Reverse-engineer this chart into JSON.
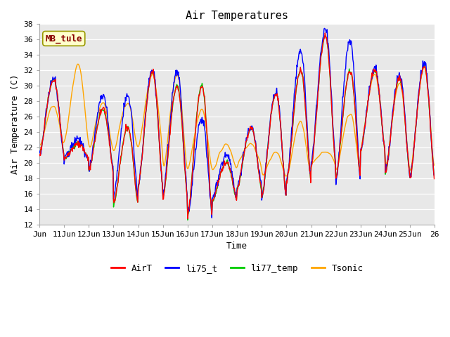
{
  "title": "Air Temperatures",
  "xlabel": "Time",
  "ylabel": "Air Temperature (C)",
  "ylim": [
    12,
    38
  ],
  "yticks": [
    12,
    14,
    16,
    18,
    20,
    22,
    24,
    26,
    28,
    30,
    32,
    34,
    36,
    38
  ],
  "bg_color": "#e8e8e8",
  "annotation_text": "MB_tule",
  "annotation_bg": "#ffffcc",
  "annotation_border": "#999900",
  "annotation_fg": "#880000",
  "legend_entries": [
    "AirT",
    "li75_t",
    "li77_temp",
    "Tsonic"
  ],
  "legend_colors": [
    "#ff0000",
    "#0000ff",
    "#00cc00",
    "#ffa500"
  ],
  "line_width": 1.0,
  "n_days": 16,
  "x_tick_labels": [
    "Jun",
    "11Jun",
    "12Jun",
    "13Jun",
    "14Jun",
    "15Jun",
    "16Jun",
    "17Jun",
    "18Jun",
    "19Jun",
    "20Jun",
    "21Jun",
    "22Jun",
    "23Jun",
    "24Jun",
    "25Jun",
    "26"
  ],
  "font_family": "monospace",
  "samples_per_day": 48,
  "daily_mins_base": [
    21.0,
    20.5,
    19.0,
    14.5,
    17.0,
    15.5,
    13.0,
    15.0,
    16.5,
    15.5,
    17.5,
    19.5,
    18.0,
    21.5,
    18.5,
    18.0
  ],
  "daily_maxs_base": [
    30.8,
    22.5,
    27.0,
    24.5,
    31.8,
    30.0,
    30.0,
    20.0,
    24.5,
    29.0,
    32.0,
    36.5,
    32.0,
    32.0,
    31.0,
    32.5
  ],
  "daily_mins_li75": [
    21.0,
    20.5,
    19.0,
    15.5,
    17.0,
    15.5,
    13.2,
    15.5,
    17.0,
    15.5,
    17.5,
    20.0,
    17.5,
    21.5,
    18.5,
    18.0
  ],
  "daily_maxs_li75": [
    31.0,
    23.0,
    28.8,
    28.8,
    32.0,
    31.8,
    25.8,
    21.0,
    24.5,
    29.2,
    34.5,
    37.5,
    35.8,
    32.2,
    31.5,
    33.0
  ],
  "daily_mins_tsonic": [
    22.0,
    22.5,
    21.5,
    21.5,
    22.0,
    18.5,
    19.0,
    19.0,
    20.0,
    18.0,
    18.0,
    20.0,
    18.5,
    22.0,
    19.0,
    18.5
  ],
  "daily_maxs_tsonic": [
    27.5,
    32.8,
    27.8,
    27.8,
    31.5,
    31.5,
    27.0,
    22.5,
    22.5,
    21.5,
    25.5,
    21.5,
    26.5,
    31.5,
    30.5,
    32.5
  ]
}
